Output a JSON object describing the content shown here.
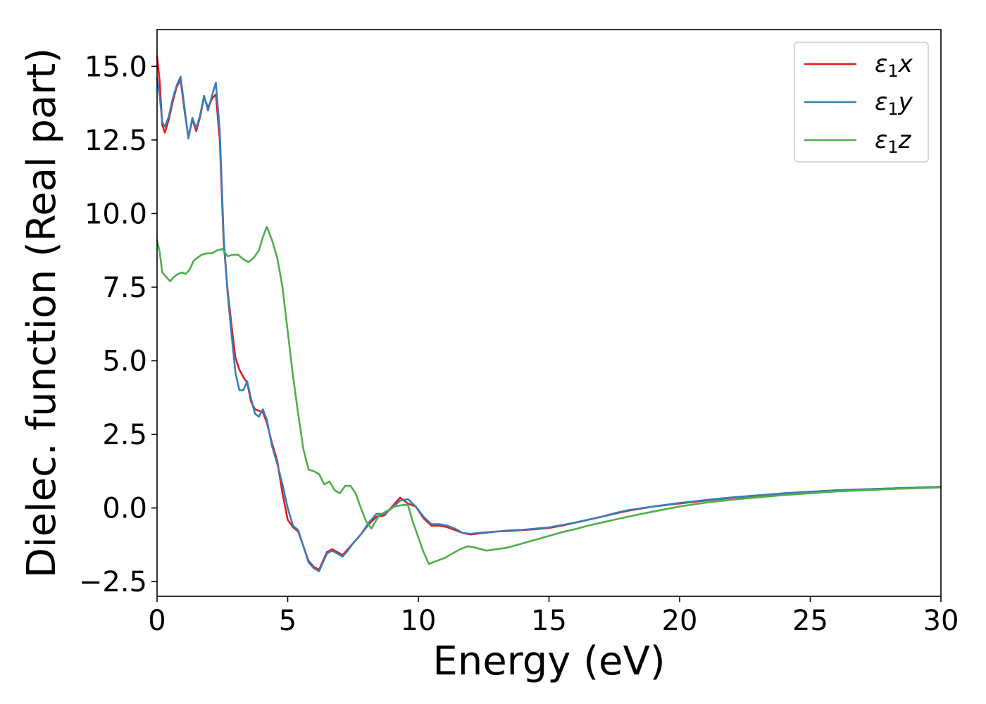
{
  "chart_data": {
    "type": "line",
    "xlabel": "Energy (eV)",
    "ylabel": "Dielec. function (Real part)",
    "xlim": [
      0,
      30
    ],
    "ylim": [
      -3.0,
      16.25
    ],
    "xticks": [
      0,
      5,
      10,
      15,
      20,
      25,
      30
    ],
    "xtick_labels": [
      "0",
      "5",
      "10",
      "15",
      "20",
      "25",
      "30"
    ],
    "yticks": [
      -2.5,
      0.0,
      2.5,
      5.0,
      7.5,
      10.0,
      12.5,
      15.0
    ],
    "ytick_labels": [
      "−2.5",
      "0.0",
      "2.5",
      "5.0",
      "7.5",
      "10.0",
      "12.5",
      "15.0"
    ],
    "grid": false,
    "legend_position": "top-right",
    "series": [
      {
        "name": "ε1x",
        "label_base": "ε",
        "label_sub": "1",
        "label_var": "x",
        "color": "#e41a1c",
        "x": [
          0.0,
          0.1,
          0.2,
          0.3,
          0.45,
          0.6,
          0.75,
          0.9,
          1.05,
          1.2,
          1.35,
          1.5,
          1.65,
          1.8,
          1.95,
          2.1,
          2.25,
          2.4,
          2.55,
          2.7,
          2.85,
          3.0,
          3.15,
          3.3,
          3.45,
          3.6,
          3.75,
          3.9,
          4.05,
          4.2,
          4.4,
          4.6,
          4.8,
          5.0,
          5.2,
          5.4,
          5.6,
          5.8,
          6.0,
          6.2,
          6.35,
          6.5,
          6.7,
          6.9,
          7.1,
          7.3,
          7.5,
          7.8,
          8.1,
          8.4,
          8.7,
          9.0,
          9.3,
          9.6,
          9.9,
          10.2,
          10.5,
          10.8,
          11.1,
          11.4,
          11.7,
          12.0,
          12.5,
          13.0,
          13.5,
          14.0,
          14.5,
          15.0,
          15.5,
          16.0,
          16.5,
          17.0,
          17.5,
          18.0,
          19.0,
          20.0,
          21.0,
          22.0,
          23.0,
          24.0,
          25.0,
          26.0,
          27.0,
          28.0,
          29.0,
          30.0
        ],
        "y": [
          15.35,
          14.5,
          13.0,
          12.75,
          13.2,
          13.8,
          14.3,
          14.55,
          13.5,
          12.6,
          13.2,
          12.8,
          13.3,
          13.95,
          13.6,
          13.9,
          14.05,
          12.5,
          9.0,
          7.4,
          6.2,
          5.1,
          4.7,
          4.45,
          4.25,
          3.6,
          3.35,
          3.3,
          3.25,
          2.9,
          2.2,
          1.6,
          0.5,
          -0.4,
          -0.65,
          -0.8,
          -1.3,
          -1.8,
          -2.0,
          -2.1,
          -1.8,
          -1.5,
          -1.4,
          -1.5,
          -1.6,
          -1.4,
          -1.2,
          -0.9,
          -0.55,
          -0.3,
          -0.25,
          0.05,
          0.35,
          0.15,
          0.05,
          -0.35,
          -0.6,
          -0.6,
          -0.65,
          -0.75,
          -0.85,
          -0.9,
          -0.85,
          -0.8,
          -0.78,
          -0.75,
          -0.72,
          -0.68,
          -0.6,
          -0.5,
          -0.4,
          -0.3,
          -0.2,
          -0.1,
          0.05,
          0.15,
          0.25,
          0.35,
          0.42,
          0.5,
          0.55,
          0.6,
          0.63,
          0.66,
          0.69,
          0.72
        ]
      },
      {
        "name": "ε1y",
        "label_base": "ε",
        "label_sub": "1",
        "label_var": "y",
        "color": "#377eb8",
        "x": [
          0.0,
          0.1,
          0.2,
          0.3,
          0.45,
          0.6,
          0.75,
          0.9,
          1.05,
          1.2,
          1.35,
          1.5,
          1.65,
          1.8,
          1.95,
          2.1,
          2.25,
          2.4,
          2.55,
          2.7,
          2.85,
          3.0,
          3.15,
          3.3,
          3.45,
          3.6,
          3.75,
          3.9,
          4.05,
          4.2,
          4.4,
          4.6,
          4.8,
          5.0,
          5.2,
          5.4,
          5.6,
          5.8,
          6.0,
          6.2,
          6.35,
          6.5,
          6.7,
          6.9,
          7.1,
          7.3,
          7.5,
          7.8,
          8.1,
          8.4,
          8.7,
          9.0,
          9.3,
          9.6,
          9.9,
          10.2,
          10.5,
          10.8,
          11.1,
          11.4,
          11.7,
          12.0,
          12.5,
          13.0,
          13.5,
          14.0,
          14.5,
          15.0,
          15.5,
          16.0,
          16.5,
          17.0,
          17.5,
          18.0,
          19.0,
          20.0,
          21.0,
          22.0,
          23.0,
          24.0,
          25.0,
          26.0,
          27.0,
          28.0,
          29.0,
          30.0
        ],
        "y": [
          14.6,
          14.0,
          13.1,
          12.95,
          13.3,
          13.9,
          14.35,
          14.65,
          13.6,
          12.55,
          13.25,
          12.9,
          13.35,
          14.0,
          13.5,
          14.0,
          14.45,
          12.8,
          9.2,
          7.3,
          5.9,
          4.6,
          4.0,
          4.0,
          4.3,
          3.7,
          3.2,
          3.1,
          3.35,
          3.0,
          2.1,
          1.5,
          0.8,
          0.0,
          -0.6,
          -0.75,
          -1.3,
          -1.85,
          -2.05,
          -2.15,
          -1.85,
          -1.55,
          -1.45,
          -1.55,
          -1.65,
          -1.45,
          -1.2,
          -0.9,
          -0.5,
          -0.2,
          -0.2,
          0.0,
          0.25,
          0.3,
          0.05,
          -0.3,
          -0.55,
          -0.55,
          -0.6,
          -0.7,
          -0.85,
          -0.88,
          -0.83,
          -0.8,
          -0.76,
          -0.74,
          -0.7,
          -0.66,
          -0.58,
          -0.5,
          -0.4,
          -0.3,
          -0.18,
          -0.08,
          0.05,
          0.17,
          0.27,
          0.36,
          0.43,
          0.5,
          0.55,
          0.6,
          0.63,
          0.66,
          0.69,
          0.72
        ]
      },
      {
        "name": "ε1z",
        "label_base": "ε",
        "label_sub": "1",
        "label_var": "z",
        "color": "#4daf4a",
        "x": [
          0.0,
          0.1,
          0.2,
          0.35,
          0.5,
          0.65,
          0.8,
          0.95,
          1.1,
          1.25,
          1.4,
          1.55,
          1.7,
          1.9,
          2.1,
          2.3,
          2.5,
          2.7,
          2.9,
          3.1,
          3.3,
          3.5,
          3.7,
          3.9,
          4.05,
          4.2,
          4.4,
          4.6,
          4.8,
          5.0,
          5.2,
          5.4,
          5.6,
          5.8,
          6.0,
          6.2,
          6.4,
          6.6,
          6.8,
          7.0,
          7.2,
          7.4,
          7.6,
          7.8,
          8.0,
          8.2,
          8.5,
          8.8,
          9.1,
          9.4,
          9.6,
          9.8,
          10.0,
          10.2,
          10.4,
          10.7,
          11.0,
          11.3,
          11.6,
          11.9,
          12.2,
          12.6,
          13.0,
          13.4,
          13.8,
          14.2,
          14.6,
          15.0,
          15.5,
          16.0,
          16.5,
          17.0,
          17.5,
          18.0,
          19.0,
          20.0,
          21.0,
          22.0,
          23.0,
          24.0,
          25.0,
          26.0,
          27.0,
          28.0,
          29.0,
          30.0
        ],
        "y": [
          9.1,
          8.7,
          8.0,
          7.85,
          7.7,
          7.85,
          7.95,
          8.0,
          7.95,
          8.1,
          8.4,
          8.5,
          8.6,
          8.65,
          8.65,
          8.75,
          8.8,
          8.55,
          8.6,
          8.6,
          8.45,
          8.35,
          8.5,
          8.75,
          9.2,
          9.55,
          9.1,
          8.5,
          7.5,
          6.0,
          4.5,
          3.2,
          2.0,
          1.3,
          1.25,
          1.15,
          0.8,
          0.9,
          0.6,
          0.5,
          0.75,
          0.75,
          0.5,
          0.0,
          -0.45,
          -0.7,
          -0.25,
          -0.1,
          0.05,
          0.1,
          0.1,
          -0.5,
          -1.0,
          -1.5,
          -1.9,
          -1.8,
          -1.7,
          -1.55,
          -1.4,
          -1.3,
          -1.35,
          -1.45,
          -1.4,
          -1.35,
          -1.25,
          -1.15,
          -1.05,
          -0.95,
          -0.82,
          -0.72,
          -0.6,
          -0.5,
          -0.4,
          -0.3,
          -0.12,
          0.05,
          0.18,
          0.28,
          0.36,
          0.44,
          0.5,
          0.56,
          0.6,
          0.64,
          0.67,
          0.7
        ]
      }
    ]
  }
}
